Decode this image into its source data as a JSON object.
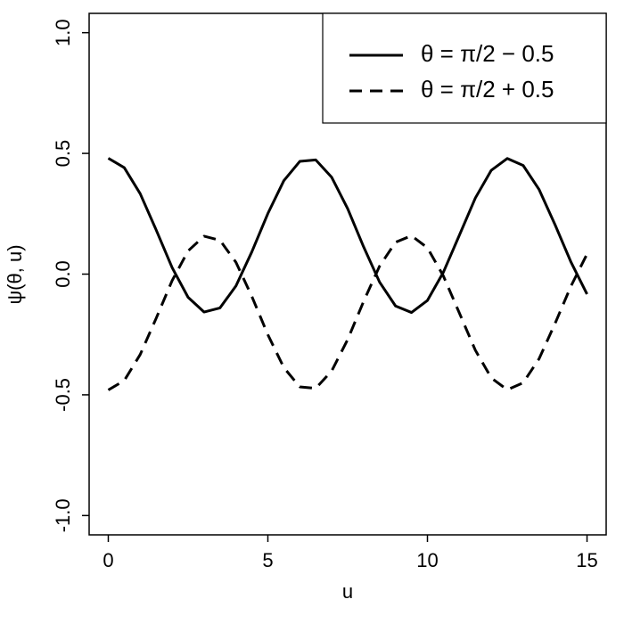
{
  "chart_data": {
    "type": "line",
    "xlabel": "u",
    "ylabel": "ψ(θ, u)",
    "x": [
      0,
      0.5,
      1,
      1.5,
      2,
      2.5,
      3,
      3.5,
      4,
      4.5,
      5,
      5.5,
      6,
      6.5,
      7,
      7.5,
      8,
      8.5,
      9,
      9.5,
      10,
      10.5,
      11,
      11.5,
      12,
      12.5,
      13,
      13.5,
      14,
      14.5,
      15
    ],
    "series": [
      {
        "name": "θ = π/2 − 0.5",
        "color": "#000000",
        "dash": "solid",
        "values": [
          0.48,
          0.441,
          0.333,
          0.183,
          0.027,
          -0.096,
          -0.157,
          -0.14,
          -0.049,
          0.093,
          0.251,
          0.387,
          0.467,
          0.473,
          0.401,
          0.271,
          0.113,
          -0.033,
          -0.132,
          -0.159,
          -0.109,
          0.008,
          0.161,
          0.315,
          0.43,
          0.479,
          0.45,
          0.35,
          0.204,
          0.049,
          -0.083
        ]
      },
      {
        "name": "θ = π/2 + 0.5",
        "color": "#000000",
        "dash": "dashed",
        "values": [
          -0.48,
          -0.441,
          -0.333,
          -0.183,
          -0.027,
          0.096,
          0.157,
          0.14,
          0.049,
          -0.093,
          -0.251,
          -0.387,
          -0.467,
          -0.473,
          -0.401,
          -0.271,
          -0.113,
          0.033,
          0.132,
          0.159,
          0.109,
          -0.008,
          -0.161,
          -0.315,
          -0.43,
          -0.479,
          -0.45,
          -0.35,
          -0.204,
          -0.049,
          0.083
        ]
      }
    ],
    "xlim": [
      -0.6,
      15.6
    ],
    "ylim": [
      -1.08,
      1.08
    ],
    "xticks": [
      0,
      5,
      10,
      15
    ],
    "yticks": [
      {
        "value": -1,
        "label": "-1.0"
      },
      -0.5,
      {
        "value": 0,
        "label": "0.0"
      },
      0.5,
      {
        "value": 1,
        "label": "1.0"
      }
    ],
    "legend": "top-right"
  }
}
